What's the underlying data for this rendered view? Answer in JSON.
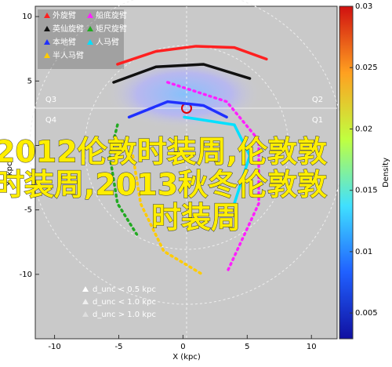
{
  "chart_data": {
    "type": "line",
    "x_label": "X (kpc)",
    "y_label": "Y (kpc)",
    "xlim": [
      -11.5,
      12
    ],
    "ylim": [
      -15,
      10.8
    ],
    "xticks": [
      -10,
      -5,
      0,
      5,
      10
    ],
    "yticks": [
      -10,
      -5,
      0,
      5,
      10
    ],
    "quadrants": [
      "Q3",
      "Q2",
      "Q4",
      "Q1"
    ],
    "series": [
      {
        "name": "外旋臂",
        "color": "#ff2020",
        "style": "solid",
        "x": [
          -5.1,
          -2.1,
          1.0,
          4.0,
          6.5
        ],
        "y": [
          6.3,
          7.3,
          7.7,
          7.6,
          6.7
        ]
      },
      {
        "name": "船底旋臂",
        "color": "#ff20ff",
        "style": "dotted",
        "x": [
          -1.2,
          3.4,
          5.9,
          5.9,
          3.4
        ],
        "y": [
          4.9,
          3.4,
          0.4,
          -4.5,
          -9.9
        ]
      },
      {
        "name": "英仙旋臂",
        "color": "#111111",
        "style": "solid",
        "x": [
          -5.4,
          -2.1,
          1.6,
          5.2
        ],
        "y": [
          4.9,
          6.1,
          6.3,
          5.2
        ]
      },
      {
        "name": "矩尺旋臂",
        "color": "#22aa22",
        "style": "dotted",
        "x": [
          -5.1,
          -5.7,
          -5.1,
          -3.6
        ],
        "y": [
          1.6,
          -0.8,
          -4.5,
          -6.9
        ]
      },
      {
        "name": "本地臂",
        "color": "#2030ff",
        "style": "solid",
        "x": [
          -4.2,
          -1.2,
          1.6,
          3.4
        ],
        "y": [
          2.2,
          3.4,
          3.1,
          2.2
        ]
      },
      {
        "name": "人马臂",
        "color": "#00e0ff",
        "style": "solid",
        "x": [
          0.1,
          4.0,
          5.2,
          4.0
        ],
        "y": [
          2.2,
          1.6,
          -0.8,
          -4.5
        ]
      },
      {
        "name": "半人马臂",
        "color": "#ffcc00",
        "style": "dotted",
        "x": [
          -3.9,
          -3.3,
          -1.5,
          1.5
        ],
        "y": [
          -0.8,
          -4.5,
          -8.2,
          -10.0
        ]
      }
    ],
    "marker_legend": [
      "d_unc < 0.5 kpc",
      "d_unc < 1.0 kpc",
      "d_unc > 1.0 kpc"
    ],
    "colorbar": {
      "label": "Density",
      "clim": [
        0.0029,
        0.03
      ],
      "ticks": [
        0.005,
        0.01,
        0.015,
        0.02,
        0.025,
        0.03
      ]
    },
    "overlay_text": [
      "2012伦敦时装周,伦敦敦",
      "时装周,2013秋冬伦敦敦",
      "时装周"
    ]
  }
}
